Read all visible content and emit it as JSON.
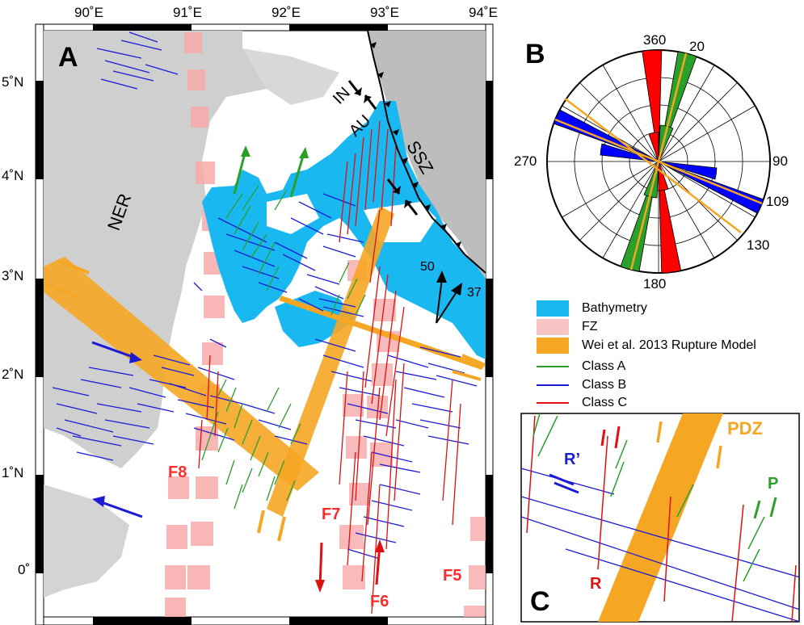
{
  "map": {
    "panel_label": "A",
    "lon_ticks": [
      "90˚E",
      "91˚E",
      "92˚E",
      "93˚E",
      "94˚E"
    ],
    "lat_ticks": [
      "5˚N",
      "4˚N",
      "3˚N",
      "2˚N",
      "1˚N",
      "0˚"
    ],
    "labels": {
      "ner": "NER",
      "ssz": "SSZ",
      "in": "IN",
      "au": "AU",
      "vec_50": "50",
      "vec_37": "37"
    },
    "fracture_zones": [
      "F8",
      "F7",
      "F6",
      "F5"
    ],
    "colors": {
      "bathymetry": "#19b8f0",
      "fz": "#f49a9a",
      "rupture": "#f5a623",
      "class_a": "#2aa02a",
      "class_b": "#1b1bd6",
      "class_c": "#e01010",
      "land": "#cfcfcf"
    }
  },
  "rose": {
    "panel_label": "B",
    "labels": [
      "360",
      "20",
      "90",
      "109",
      "130",
      "180",
      "270"
    ]
  },
  "legend": {
    "items": [
      {
        "label": "Bathymetry",
        "kind": "swatch",
        "color": "#19b8f0"
      },
      {
        "label": "FZ",
        "kind": "swatch",
        "color": "#f7c4c4"
      },
      {
        "label": "Wei et al. 2013 Rupture Model",
        "kind": "swatch",
        "color": "#f5a623"
      },
      {
        "label": "Class A",
        "kind": "line",
        "color": "#2aa02a"
      },
      {
        "label": "Class B",
        "kind": "line",
        "color": "#1b1bd6"
      },
      {
        "label": "Class C",
        "kind": "line",
        "color": "#e01010"
      }
    ]
  },
  "inset": {
    "panel_label": "C",
    "labels": {
      "pdz": "PDZ",
      "r_prime": "R’",
      "r": "R",
      "p": "P"
    }
  }
}
